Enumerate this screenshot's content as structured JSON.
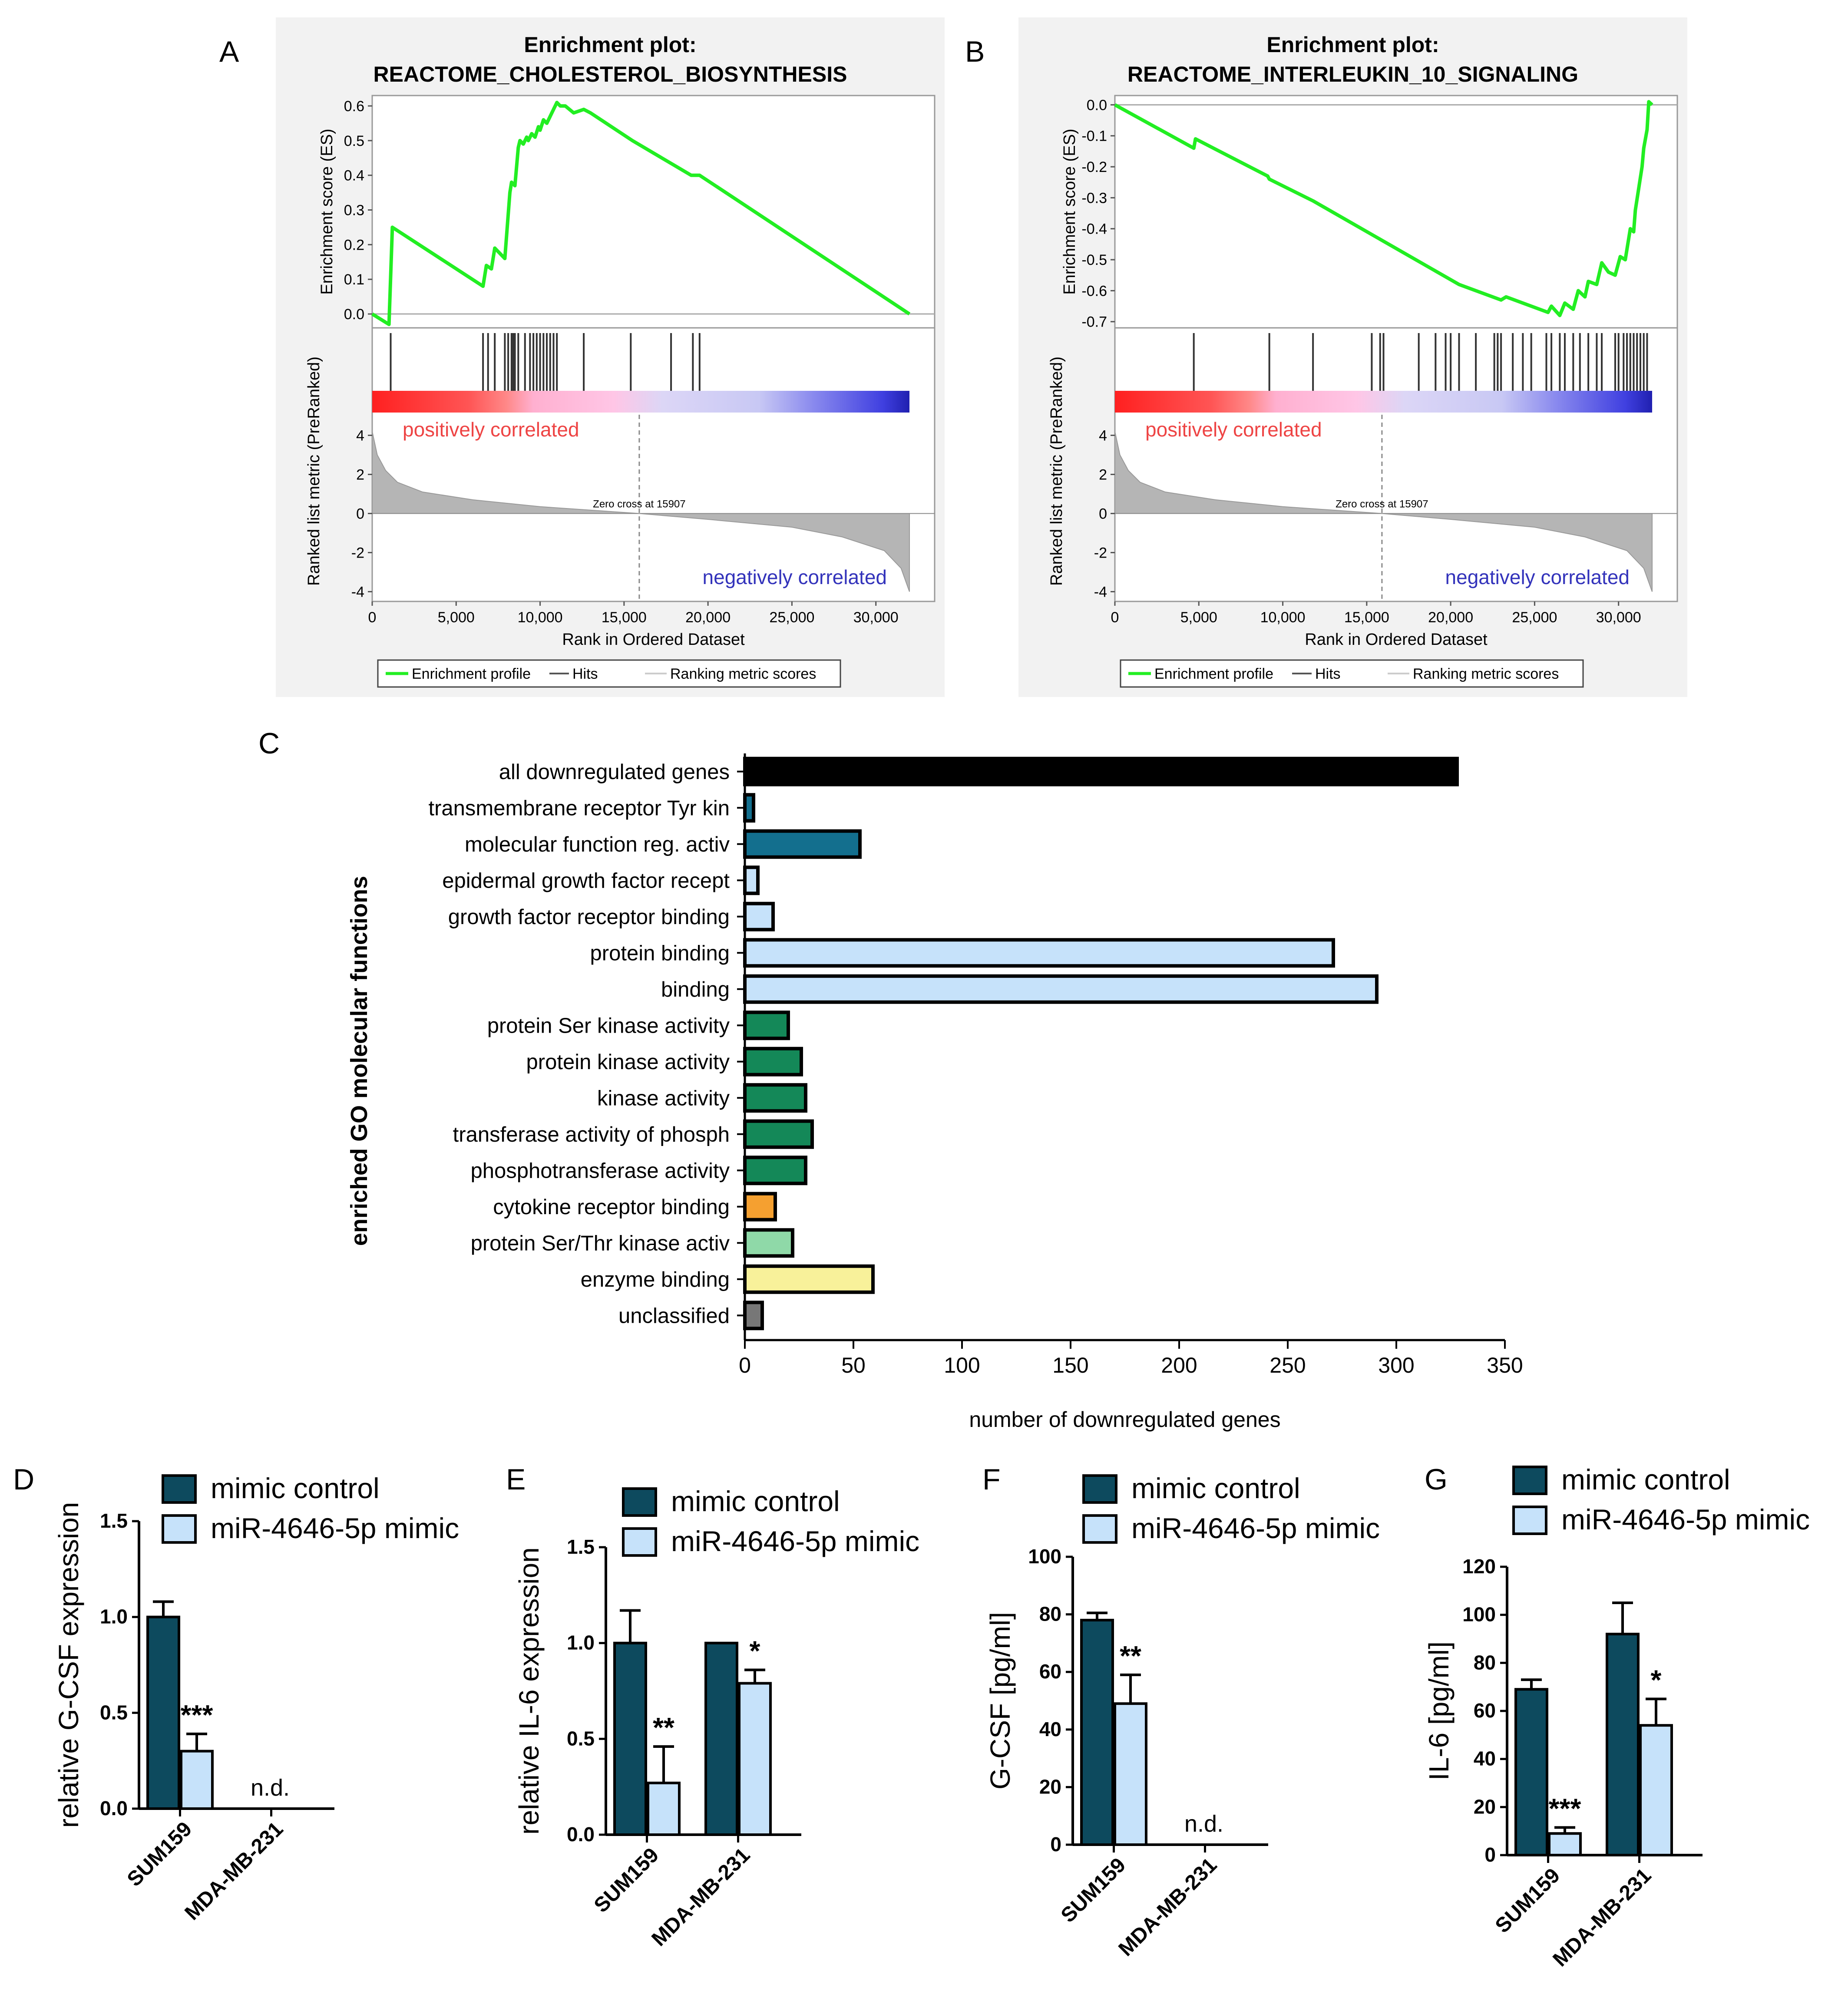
{
  "panels": {
    "A": "A",
    "B": "B",
    "C": "C",
    "D": "D",
    "E": "E",
    "F": "F",
    "G": "G"
  },
  "colors": {
    "gsea_bg": "#f2f2f2",
    "es_line": "#22ee22",
    "hits": "#333333",
    "ranked_fill": "#b5b5b5",
    "pos_text": "#ee4444",
    "neg_text": "#3333bb",
    "dark_bar": "#0d4a5e",
    "light_bar": "#c6e2fa",
    "go_black": "#000000",
    "go_teal": "#136f8e",
    "go_lightblue": "#c6e2fa",
    "go_green": "#148858",
    "go_orange": "#f5a030",
    "go_mint": "#8fd9a8",
    "go_yellow": "#f8f19a",
    "go_gray": "#777777"
  },
  "chart_data": [
    {
      "id": "A",
      "type": "line",
      "title_line1": "Enrichment plot:",
      "title_line2": "REACTOME_CHOLESTEROL_BIOSYNTHESIS",
      "ylabel_es": "Enrichment score (ES)",
      "ylabel_rank": "Ranked list metric (PreRanked)",
      "xlabel": "Rank in Ordered Dataset",
      "es_ticks": [
        "0.0",
        "0.1",
        "0.2",
        "0.3",
        "0.4",
        "0.5",
        "0.6"
      ],
      "es_tick_values": [
        0,
        0.1,
        0.2,
        0.3,
        0.4,
        0.5,
        0.6
      ],
      "es_range": [
        -0.04,
        0.63
      ],
      "rank_ticks": [
        "4",
        "2",
        "0",
        "-2",
        "-4"
      ],
      "rank_tick_values": [
        4,
        2,
        0,
        -2,
        -4
      ],
      "x_ticks": [
        "0",
        "5,000",
        "10,000",
        "15,000",
        "20,000",
        "25,000",
        "30,000"
      ],
      "x_tick_values": [
        0,
        5000,
        10000,
        15000,
        20000,
        25000,
        30000
      ],
      "x_range": [
        0,
        33500
      ],
      "x_max": 32000,
      "es_points": [
        [
          0,
          0
        ],
        [
          1000,
          -0.03
        ],
        [
          1200,
          0.25
        ],
        [
          6600,
          0.08
        ],
        [
          6800,
          0.14
        ],
        [
          7100,
          0.13
        ],
        [
          7300,
          0.19
        ],
        [
          7900,
          0.16
        ],
        [
          8200,
          0.35
        ],
        [
          8300,
          0.38
        ],
        [
          8500,
          0.37
        ],
        [
          8700,
          0.48
        ],
        [
          8800,
          0.5
        ],
        [
          9000,
          0.49
        ],
        [
          9200,
          0.51
        ],
        [
          9300,
          0.5
        ],
        [
          9500,
          0.52
        ],
        [
          9700,
          0.51
        ],
        [
          9900,
          0.54
        ],
        [
          10000,
          0.53
        ],
        [
          10200,
          0.56
        ],
        [
          10400,
          0.55
        ],
        [
          10700,
          0.58
        ],
        [
          11000,
          0.61
        ],
        [
          11200,
          0.6
        ],
        [
          11500,
          0.6
        ],
        [
          12000,
          0.58
        ],
        [
          12600,
          0.59
        ],
        [
          13000,
          0.58
        ],
        [
          15500,
          0.5
        ],
        [
          19000,
          0.4
        ],
        [
          19500,
          0.4
        ],
        [
          32000,
          0
        ]
      ],
      "hits": [
        1100,
        6600,
        6900,
        7300,
        7900,
        8100,
        8300,
        8400,
        8500,
        8700,
        9100,
        9400,
        9600,
        9800,
        10000,
        10200,
        10400,
        10600,
        10800,
        11000,
        12600,
        15400,
        17800,
        19100,
        19500
      ],
      "zero_cross_label": "Zero cross at 15907",
      "zero_cross": 15907,
      "pos_label": "positively correlated",
      "neg_label": "negatively correlated",
      "legend": [
        "Enrichment profile",
        "Hits",
        "Ranking metric scores"
      ]
    },
    {
      "id": "B",
      "type": "line",
      "title_line1": "Enrichment plot:",
      "title_line2": "REACTOME_INTERLEUKIN_10_SIGNALING",
      "ylabel_es": "Enrichment score (ES)",
      "ylabel_rank": "Ranked list metric (PreRanked)",
      "xlabel": "Rank in Ordered Dataset",
      "es_ticks": [
        "0.0",
        "-0.1",
        "-0.2",
        "-0.3",
        "-0.4",
        "-0.5",
        "-0.6",
        "-0.7"
      ],
      "es_tick_values": [
        0,
        -0.1,
        -0.2,
        -0.3,
        -0.4,
        -0.5,
        -0.6,
        -0.7
      ],
      "es_range": [
        -0.72,
        0.03
      ],
      "rank_ticks": [
        "4",
        "2",
        "0",
        "-2",
        "-4"
      ],
      "rank_tick_values": [
        4,
        2,
        0,
        -2,
        -4
      ],
      "x_ticks": [
        "0",
        "5,000",
        "10,000",
        "15,000",
        "20,000",
        "25,000",
        "30,000"
      ],
      "x_tick_values": [
        0,
        5000,
        10000,
        15000,
        20000,
        25000,
        30000
      ],
      "x_range": [
        0,
        33500
      ],
      "x_max": 32000,
      "es_points": [
        [
          0,
          0
        ],
        [
          4700,
          -0.14
        ],
        [
          4800,
          -0.11
        ],
        [
          9100,
          -0.23
        ],
        [
          9200,
          -0.24
        ],
        [
          11800,
          -0.31
        ],
        [
          20500,
          -0.58
        ],
        [
          23000,
          -0.63
        ],
        [
          23300,
          -0.62
        ],
        [
          25800,
          -0.67
        ],
        [
          26000,
          -0.65
        ],
        [
          26500,
          -0.68
        ],
        [
          26800,
          -0.64
        ],
        [
          27300,
          -0.66
        ],
        [
          27600,
          -0.6
        ],
        [
          28000,
          -0.62
        ],
        [
          28200,
          -0.57
        ],
        [
          28700,
          -0.58
        ],
        [
          29000,
          -0.51
        ],
        [
          29400,
          -0.54
        ],
        [
          29800,
          -0.55
        ],
        [
          30100,
          -0.49
        ],
        [
          30400,
          -0.5
        ],
        [
          30700,
          -0.4
        ],
        [
          30900,
          -0.41
        ],
        [
          31000,
          -0.34
        ],
        [
          31200,
          -0.27
        ],
        [
          31400,
          -0.2
        ],
        [
          31500,
          -0.14
        ],
        [
          31700,
          -0.08
        ],
        [
          31800,
          0.01
        ],
        [
          32000,
          0
        ]
      ],
      "hits": [
        4700,
        9200,
        11800,
        15300,
        15800,
        16000,
        18100,
        19100,
        19700,
        20000,
        20500,
        21500,
        22600,
        22800,
        23000,
        23700,
        24300,
        24800,
        25700,
        26000,
        26500,
        26800,
        27300,
        27700,
        28200,
        28700,
        29000,
        29800,
        30000,
        30300,
        30500,
        30700,
        30900,
        31100,
        31300,
        31500,
        31700
      ],
      "zero_cross_label": "Zero cross at 15907",
      "zero_cross": 15907,
      "pos_label": "positively correlated",
      "neg_label": "negatively correlated",
      "legend": [
        "Enrichment profile",
        "Hits",
        "Ranking metric scores"
      ]
    },
    {
      "id": "C",
      "type": "bar",
      "ylabel": "enriched GO molecular functions",
      "xlabel": "number of downregulated genes",
      "x_ticks": [
        "0",
        "50",
        "100",
        "150",
        "200",
        "250",
        "300",
        "350"
      ],
      "x_tick_values": [
        0,
        50,
        100,
        150,
        200,
        250,
        300,
        350
      ],
      "xlim": [
        0,
        350
      ],
      "categories": [
        "all downregulated genes",
        "transmembrane receptor Tyr kin",
        "molecular function reg. activ",
        "epidermal growth factor recept",
        "growth factor receptor binding",
        "protein binding",
        "binding",
        "protein Ser kinase activity",
        "protein kinase activity",
        "kinase activity",
        "transferase activity of phosph",
        "phosphotransferase activity",
        "cytokine receptor binding",
        "protein Ser/Thr kinase activ",
        "enzyme binding",
        "unclassified"
      ],
      "values": [
        328,
        4,
        53,
        6,
        13,
        271,
        291,
        20,
        26,
        28,
        31,
        28,
        14,
        22,
        59,
        8
      ],
      "bar_colors": [
        "#000000",
        "#136f8e",
        "#136f8e",
        "#c6e2fa",
        "#c6e2fa",
        "#c6e2fa",
        "#c6e2fa",
        "#148858",
        "#148858",
        "#148858",
        "#148858",
        "#148858",
        "#f5a030",
        "#8fd9a8",
        "#f8f19a",
        "#777777"
      ]
    },
    {
      "id": "D",
      "type": "bar",
      "ylabel": "relative G-CSF expression",
      "y_ticks": [
        "0.0",
        "0.5",
        "1.0",
        "1.5"
      ],
      "y_tick_values": [
        0,
        0.5,
        1.0,
        1.5
      ],
      "ylim": [
        0,
        1.5
      ],
      "categories": [
        "SUM159",
        "MDA-MB-231"
      ],
      "series": [
        {
          "name": "mimic control",
          "values": [
            1.0,
            null
          ],
          "errors": [
            0.08,
            null
          ]
        },
        {
          "name": "miR-4646-5p mimic",
          "values": [
            0.3,
            null
          ],
          "errors": [
            0.09,
            null
          ]
        }
      ],
      "annotations": [
        {
          "category": 0,
          "series": 1,
          "text": "***"
        }
      ],
      "nd_label": "n.d.",
      "nd_category": 1
    },
    {
      "id": "E",
      "type": "bar",
      "ylabel": "relative IL-6 expression",
      "y_ticks": [
        "0.0",
        "0.5",
        "1.0",
        "1.5"
      ],
      "y_tick_values": [
        0,
        0.5,
        1.0,
        1.5
      ],
      "ylim": [
        0,
        1.5
      ],
      "categories": [
        "SUM159",
        "MDA-MB-231"
      ],
      "series": [
        {
          "name": "mimic control",
          "values": [
            1.0,
            1.0
          ],
          "errors": [
            0.17,
            0
          ]
        },
        {
          "name": "miR-4646-5p mimic",
          "values": [
            0.27,
            0.79
          ],
          "errors": [
            0.19,
            0.07
          ]
        }
      ],
      "annotations": [
        {
          "category": 0,
          "series": 1,
          "text": "**"
        },
        {
          "category": 1,
          "series": 1,
          "text": "*"
        }
      ]
    },
    {
      "id": "F",
      "type": "bar",
      "ylabel": "G-CSF [pg/ml]",
      "y_ticks": [
        "0",
        "20",
        "40",
        "60",
        "80",
        "100"
      ],
      "y_tick_values": [
        0,
        20,
        40,
        60,
        80,
        100
      ],
      "ylim": [
        0,
        100
      ],
      "categories": [
        "SUM159",
        "MDA-MB-231"
      ],
      "series": [
        {
          "name": "mimic control",
          "values": [
            78,
            null
          ],
          "errors": [
            2.5,
            null
          ]
        },
        {
          "name": "miR-4646-5p mimic",
          "values": [
            49,
            null
          ],
          "errors": [
            10,
            null
          ]
        }
      ],
      "annotations": [
        {
          "category": 0,
          "series": 1,
          "text": "**"
        }
      ],
      "nd_label": "n.d.",
      "nd_category": 1
    },
    {
      "id": "G",
      "type": "bar",
      "ylabel": "IL-6 [pg/ml]",
      "y_ticks": [
        "0",
        "20",
        "40",
        "60",
        "80",
        "100",
        "120"
      ],
      "y_tick_values": [
        0,
        20,
        40,
        60,
        80,
        100,
        120
      ],
      "ylim": [
        0,
        120
      ],
      "categories": [
        "SUM159",
        "MDA-MB-231"
      ],
      "series": [
        {
          "name": "mimic control",
          "values": [
            69,
            92
          ],
          "errors": [
            4,
            13
          ]
        },
        {
          "name": "miR-4646-5p mimic",
          "values": [
            9,
            54
          ],
          "errors": [
            2.5,
            11
          ]
        }
      ],
      "annotations": [
        {
          "category": 0,
          "series": 1,
          "text": "***"
        },
        {
          "category": 1,
          "series": 1,
          "text": "*"
        }
      ]
    }
  ]
}
